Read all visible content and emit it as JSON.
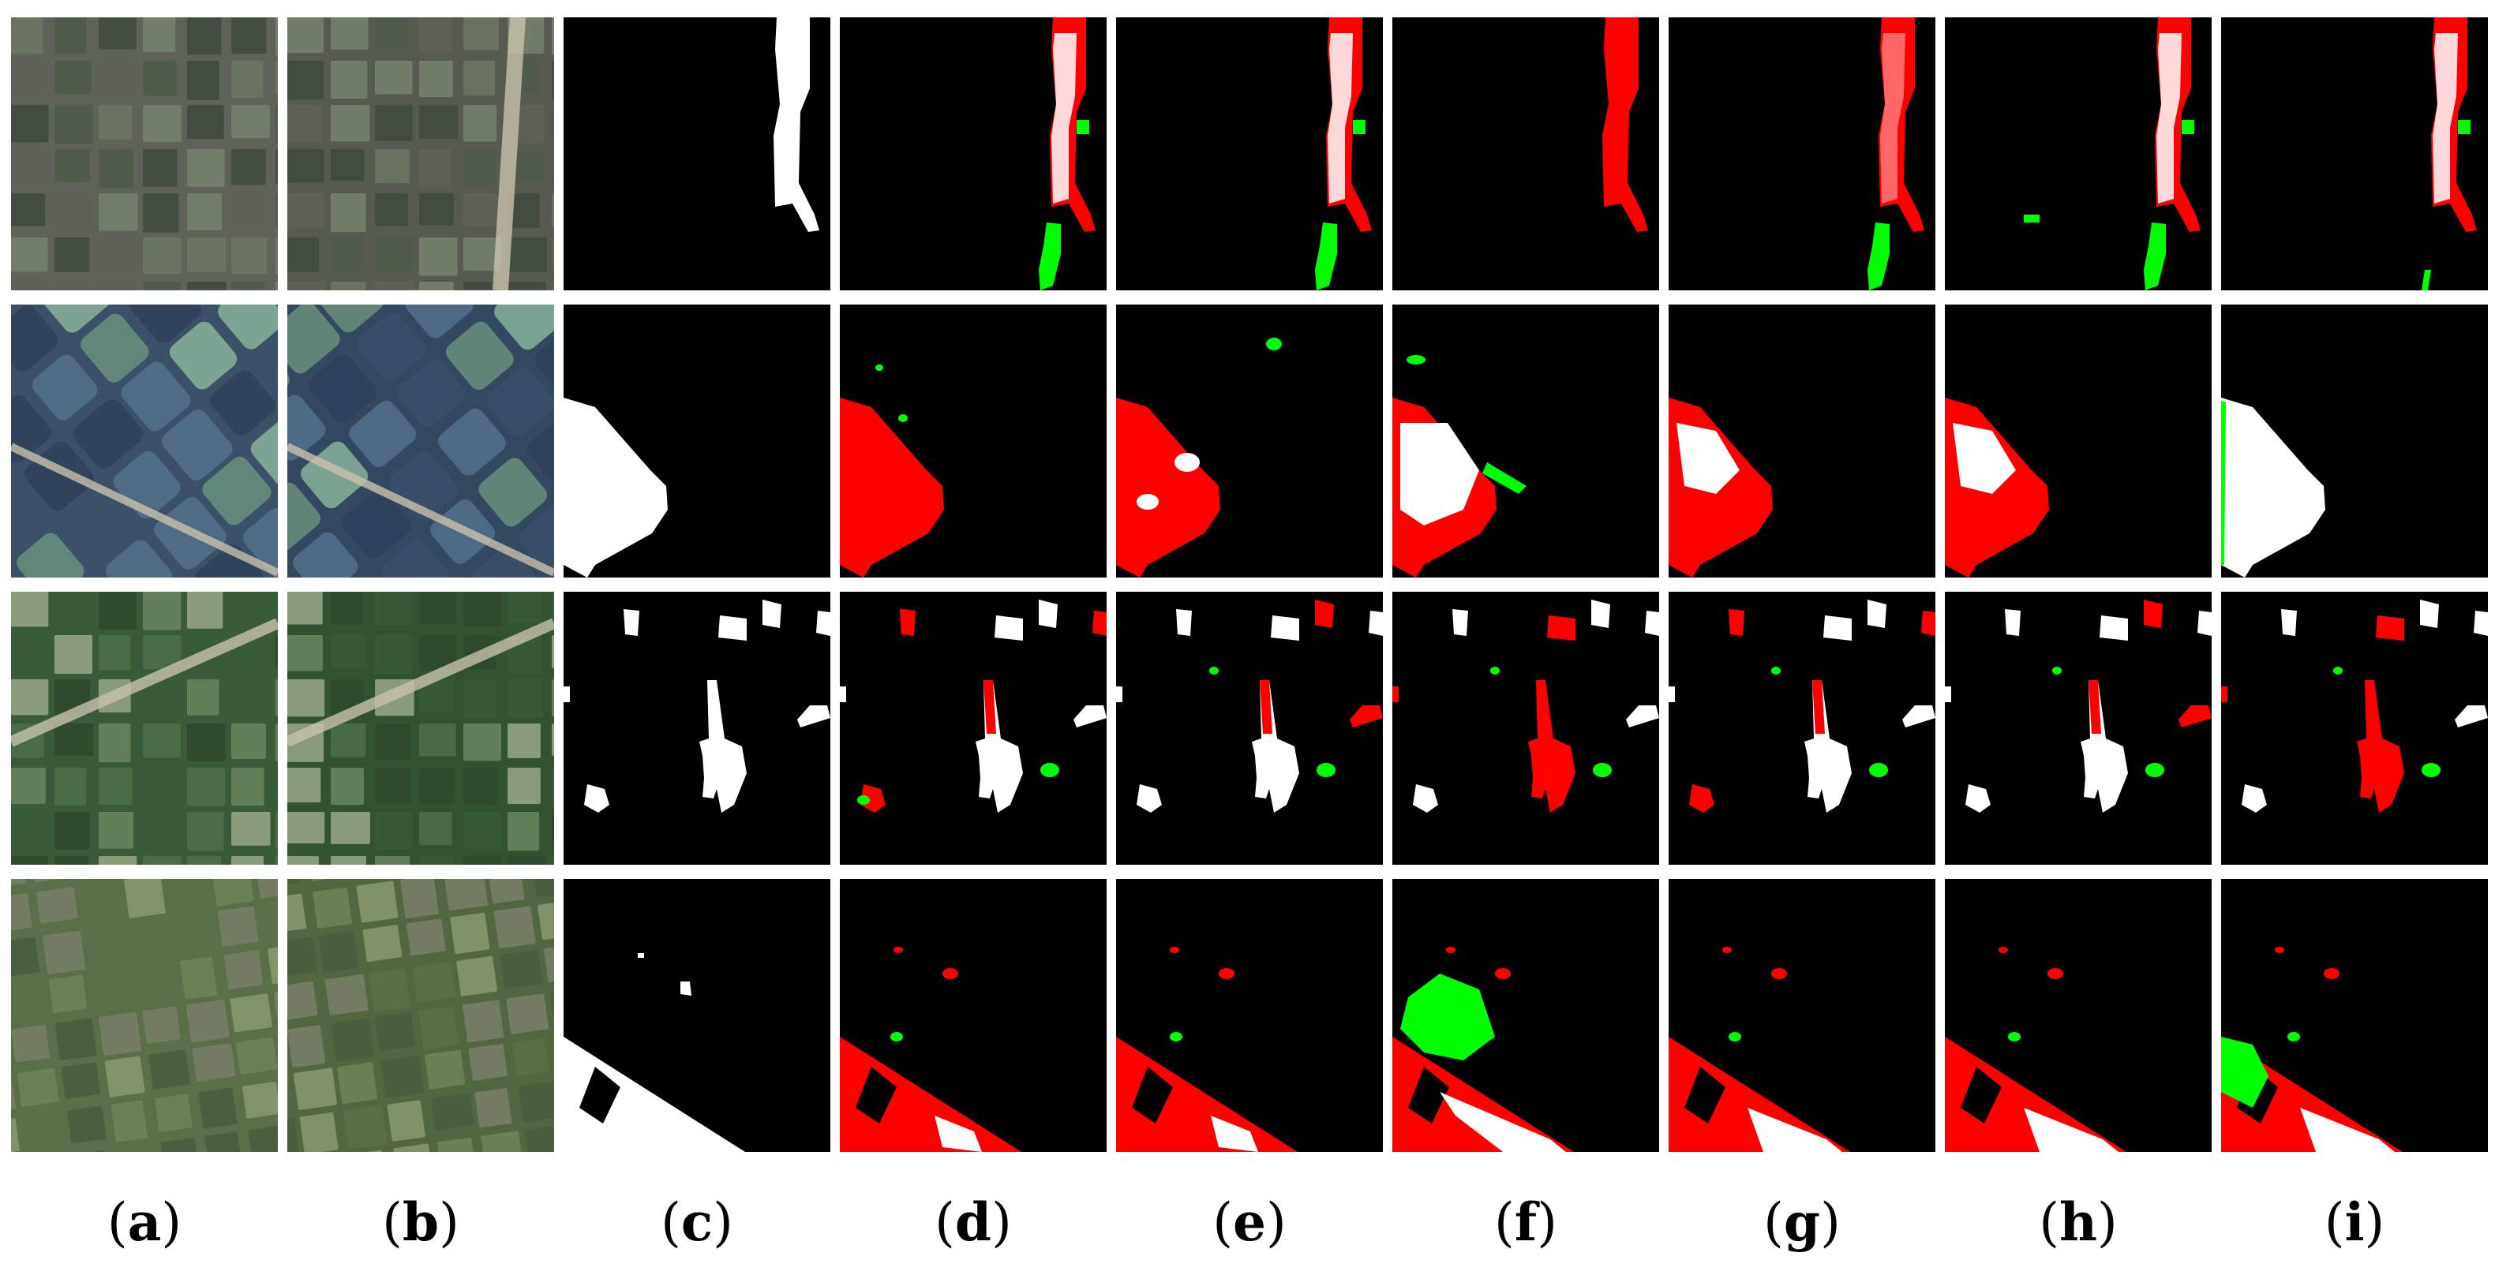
{
  "columns": [
    {
      "id": "a",
      "kind": "image-t1"
    },
    {
      "id": "b",
      "kind": "image-t2"
    },
    {
      "id": "c",
      "kind": "ground-truth"
    },
    {
      "id": "d",
      "kind": "prediction"
    },
    {
      "id": "e",
      "kind": "prediction"
    },
    {
      "id": "f",
      "kind": "prediction"
    },
    {
      "id": "g",
      "kind": "prediction"
    },
    {
      "id": "h",
      "kind": "prediction"
    },
    {
      "id": "i",
      "kind": "prediction"
    }
  ],
  "labels": {
    "open": "(",
    "close": ")",
    "letters": [
      "a",
      "b",
      "c",
      "d",
      "e",
      "f",
      "g",
      "h",
      "i"
    ]
  },
  "rows": 4,
  "colors": {
    "true_positive": "#ffffff",
    "false_negative": "#ff0000",
    "false_positive": "#00ff00",
    "background": "#000000"
  }
}
